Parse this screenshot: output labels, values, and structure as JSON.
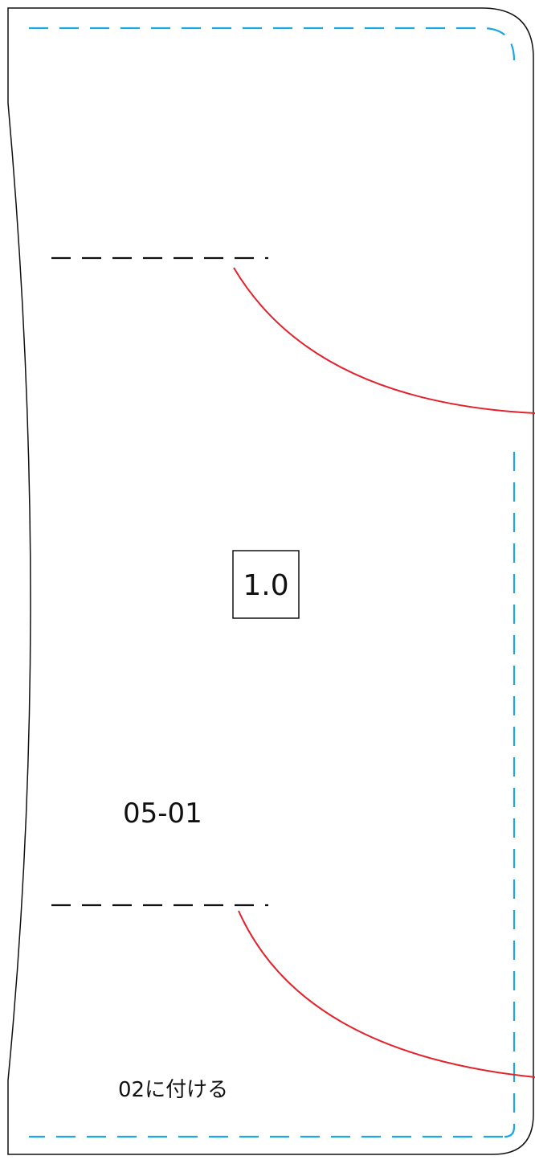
{
  "labels": {
    "size_box": "1.0",
    "piece_code": "05-01",
    "attach_note": "02に付ける"
  },
  "colors": {
    "outline": "#111111",
    "seam_line": "#1ba6e6",
    "guide_curve": "#e3222b",
    "mark_dash": "#111111"
  }
}
